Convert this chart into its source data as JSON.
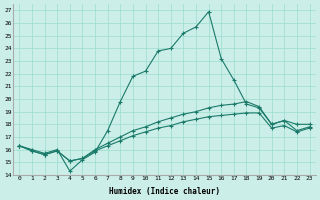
{
  "xlabel": "Humidex (Indice chaleur)",
  "background_color": "#cceee8",
  "grid_color": "#99ddcc",
  "line_color": "#1a7a6a",
  "xlim": [
    -0.5,
    23.5
  ],
  "ylim": [
    14,
    27.5
  ],
  "xticks": [
    0,
    1,
    2,
    3,
    4,
    5,
    6,
    7,
    8,
    9,
    10,
    11,
    12,
    13,
    14,
    15,
    16,
    17,
    18,
    19,
    20,
    21,
    22,
    23
  ],
  "yticks": [
    14,
    15,
    16,
    17,
    18,
    19,
    20,
    21,
    22,
    23,
    24,
    25,
    26,
    27
  ],
  "series": [
    [
      16.3,
      16.0,
      15.7,
      16.0,
      14.3,
      15.2,
      15.8,
      17.5,
      19.8,
      21.8,
      22.2,
      23.8,
      24.0,
      25.2,
      25.7,
      26.9,
      23.2,
      21.5,
      19.6,
      19.3,
      18.0,
      18.3,
      18.0,
      18.0
    ],
    [
      16.3,
      15.9,
      15.6,
      15.9,
      15.1,
      15.3,
      16.0,
      16.5,
      17.0,
      17.5,
      17.8,
      18.2,
      18.5,
      18.8,
      19.0,
      19.3,
      19.5,
      19.6,
      19.8,
      19.4,
      18.0,
      18.3,
      17.5,
      17.8
    ],
    [
      16.3,
      15.9,
      15.6,
      15.9,
      15.1,
      15.3,
      15.9,
      16.3,
      16.7,
      17.1,
      17.4,
      17.7,
      17.9,
      18.2,
      18.4,
      18.6,
      18.7,
      18.8,
      18.9,
      18.9,
      17.7,
      17.9,
      17.4,
      17.7
    ]
  ]
}
